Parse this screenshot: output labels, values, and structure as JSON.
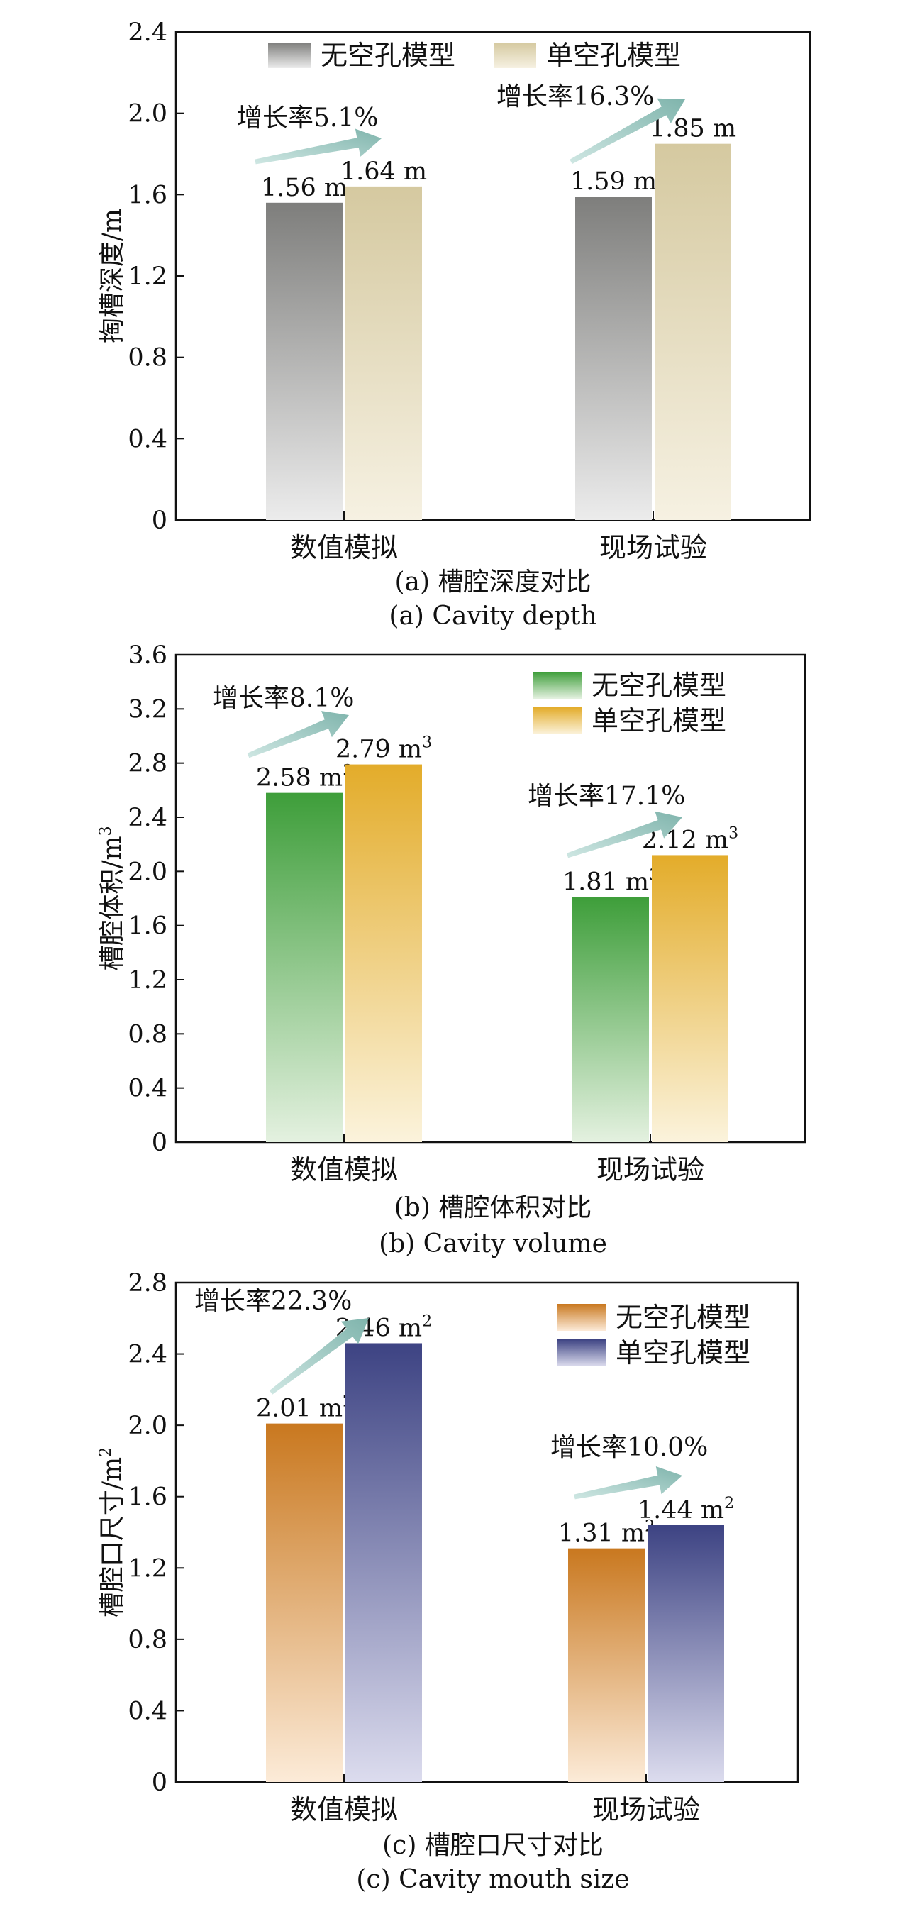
{
  "chart_data": [
    {
      "type": "bar",
      "ylabel": "掏槽深度/m",
      "ylim": [
        0,
        2.4
      ],
      "yticks": [
        "0",
        "0.4",
        "0.8",
        "1.2",
        "1.6",
        "2.0",
        "2.4"
      ],
      "categories": [
        "数值模拟",
        "现场试验"
      ],
      "legend_position": "top",
      "series": [
        {
          "name": "无空孔模型",
          "values": [
            1.56,
            1.59
          ],
          "labels": [
            "1.56 m",
            "1.59 m"
          ],
          "colors": [
            "#7e7e7c",
            "#ececec"
          ]
        },
        {
          "name": "单空孔模型",
          "values": [
            1.64,
            1.85
          ],
          "labels": [
            "1.64 m",
            "1.85 m"
          ],
          "colors": [
            "#d5c9a0",
            "#f6f1e2"
          ]
        }
      ],
      "annotations": [
        "增长率5.1%",
        "增长率16.3%"
      ],
      "caption_cn": "(a) 槽腔深度对比",
      "caption_en": "(a) Cavity depth"
    },
    {
      "type": "bar",
      "ylabel": "槽腔体积/m",
      "ylabel_sup": "3",
      "ylim": [
        0,
        3.6
      ],
      "yticks": [
        "0",
        "0.4",
        "0.8",
        "1.2",
        "1.6",
        "2.0",
        "2.4",
        "2.8",
        "3.2",
        "3.6"
      ],
      "categories": [
        "数值模拟",
        "现场试验"
      ],
      "legend_position": "top-right",
      "series": [
        {
          "name": "无空孔模型",
          "values": [
            2.58,
            1.81
          ],
          "labels": [
            "2.58 m",
            "1.81 m"
          ],
          "label_sup": "3",
          "colors": [
            "#3e9e3a",
            "#e4f1e0"
          ]
        },
        {
          "name": "单空孔模型",
          "values": [
            2.79,
            2.12
          ],
          "labels": [
            "2.79 m",
            "2.12 m"
          ],
          "label_sup": "3",
          "colors": [
            "#e3ac2a",
            "#fbf3dc"
          ]
        }
      ],
      "annotations": [
        "增长率8.1%",
        "增长率17.1%"
      ],
      "caption_cn": "(b) 槽腔体积对比",
      "caption_en": "(b) Cavity volume"
    },
    {
      "type": "bar",
      "ylabel": "槽腔口尺寸/m",
      "ylabel_sup": "2",
      "ylim": [
        0,
        2.8
      ],
      "yticks": [
        "0",
        "0.4",
        "0.8",
        "1.2",
        "1.6",
        "2.0",
        "2.4",
        "2.8"
      ],
      "categories": [
        "数值模拟",
        "现场试验"
      ],
      "legend_position": "top-right",
      "series": [
        {
          "name": "无空孔模型",
          "values": [
            2.01,
            1.31
          ],
          "labels": [
            "2.01 m",
            "1.31 m"
          ],
          "label_sup": "2",
          "colors": [
            "#c9781f",
            "#fcebd8"
          ]
        },
        {
          "name": "单空孔模型",
          "values": [
            2.46,
            1.44
          ],
          "labels": [
            "2.46 m",
            "1.44 m"
          ],
          "label_sup": "2",
          "colors": [
            "#3d4383",
            "#dcdcee"
          ]
        }
      ],
      "annotations": [
        "增长率22.3%",
        "增长率10.0%"
      ],
      "caption_cn": "(c) 槽腔口尺寸对比",
      "caption_en": "(c) Cavity mouth size"
    }
  ]
}
